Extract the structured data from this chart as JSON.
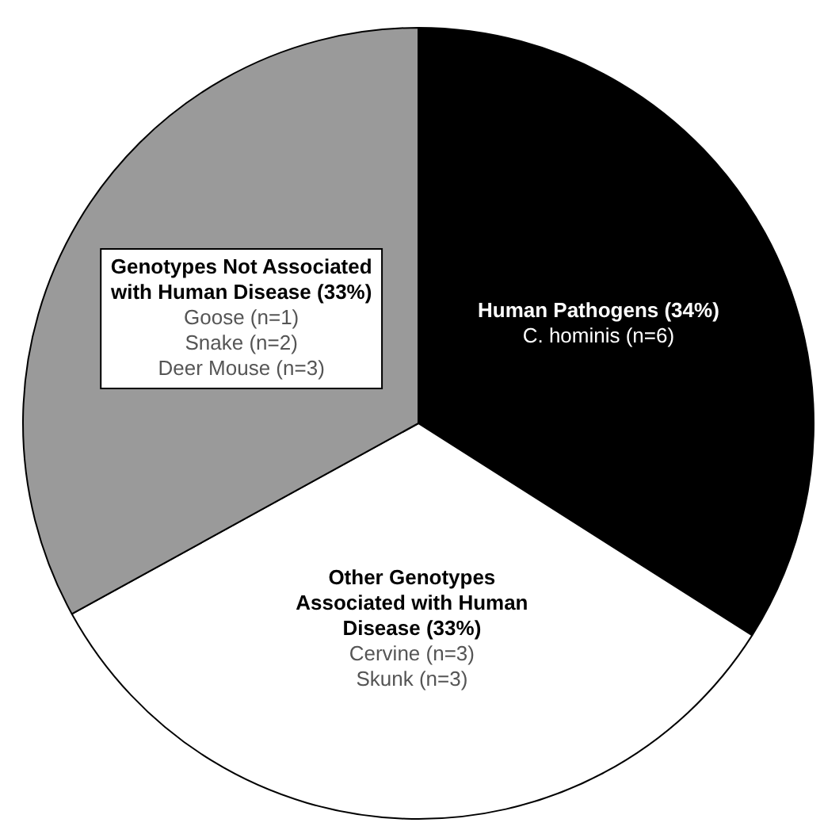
{
  "chart_data": {
    "type": "pie",
    "categories": [
      "Human Pathogens",
      "Other Genotypes Associated with Human Disease",
      "Genotypes Not Associated with Human Disease"
    ],
    "values": [
      34,
      33,
      33
    ],
    "value_labels": [
      "(34%)",
      "(33%)",
      "(33%)"
    ],
    "colors": [
      "#000000",
      "#ffffff",
      "#9a9a9a"
    ],
    "annotations": [
      {
        "text": "C. hominis (n=6)",
        "x": "Human Pathogens"
      },
      {
        "text": "Cervine (n=3)",
        "x": "Other Genotypes Associated with Human Disease"
      },
      {
        "text": "Skunk (n=3)",
        "x": "Other Genotypes Associated with Human Disease"
      },
      {
        "text": "Goose (n=1)",
        "x": "Genotypes Not Associated with Human Disease"
      },
      {
        "text": "Snake (n=2)",
        "x": "Genotypes Not Associated with Human Disease"
      },
      {
        "text": "Deer Mouse (n=3)",
        "x": "Genotypes Not Associated with Human Disease"
      }
    ],
    "legend": false
  }
}
